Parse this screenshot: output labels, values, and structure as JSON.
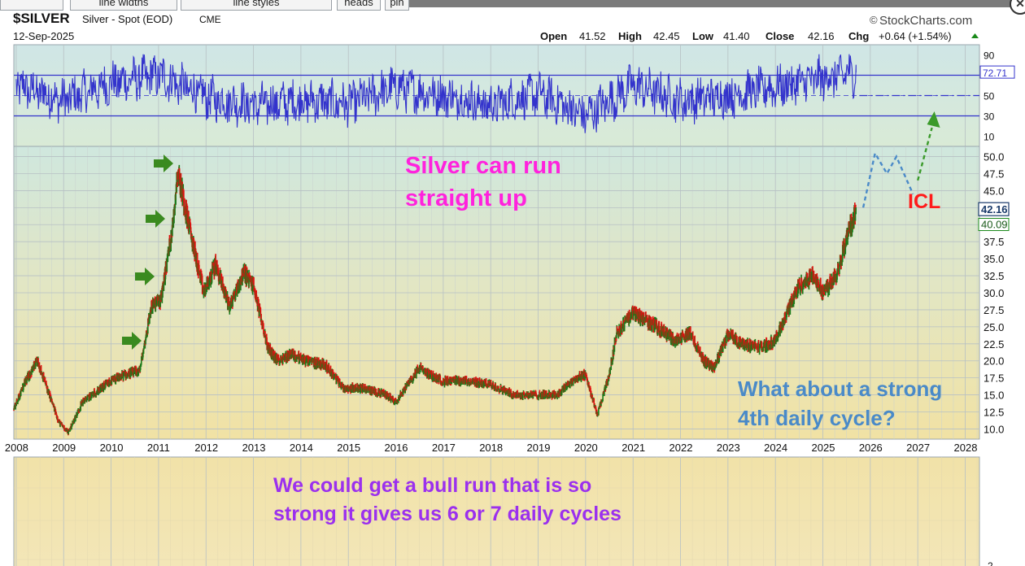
{
  "toolbar": {
    "buttons": [
      "line widths",
      "line styles",
      "heads",
      "pin"
    ]
  },
  "header": {
    "symbol": "$SILVER",
    "name": "Silver - Spot (EOD)",
    "exchange": "CME",
    "date": "12-Sep-2025",
    "brand": "StockCharts.com",
    "open_label": "Open",
    "open": "41.52",
    "high_label": "High",
    "high": "42.45",
    "low_label": "Low",
    "low": "41.40",
    "close_label": "Close",
    "close": "42.16",
    "chg_label": "Chg",
    "chg": "+0.64 (+1.54%)"
  },
  "colors": {
    "rsi_line": "#3333cc",
    "up_bar": "#1a7a1a",
    "down_bar": "#e01010",
    "arrow_green": "#3a8a1f",
    "annotation_magenta": "#ff22dd",
    "annotation_blue": "#4a8ac8",
    "annotation_purple": "#9b30ee",
    "icl_red": "#ff1a1a",
    "projection_blue": "#4a8ac8",
    "projection_green": "#3a9a2a"
  },
  "annotations": {
    "silver_run_line1": "Silver can run",
    "silver_run_line2": "straight up",
    "strong_4th_line1": "What about a strong",
    "strong_4th_line2": "4th daily cycle?",
    "bull_run_line1": "We could get a bull run that is so",
    "bull_run_line2": "strong it gives us 6 or 7 daily cycles",
    "icl_label": "ICL"
  },
  "chart_data": [
    {
      "type": "line",
      "panel": "indicator",
      "title": "",
      "y_ticks": [
        10,
        30,
        50,
        90
      ],
      "ylim": [
        0,
        100
      ],
      "reference_lines": [
        30,
        50,
        70
      ],
      "last_value": "72.71",
      "series": [
        {
          "values_description": "",
          "x": [
            2008,
            2009,
            2010,
            2011,
            2012,
            2013,
            2014,
            2015,
            2016,
            2017,
            2018,
            2019,
            2020,
            2021,
            2022,
            2023,
            2024,
            2025.7
          ],
          "values": [
            60,
            45,
            62,
            70,
            48,
            40,
            45,
            42,
            58,
            50,
            40,
            52,
            30,
            60,
            45,
            50,
            58,
            72.71
          ]
        }
      ]
    },
    {
      "type": "line",
      "panel": "price",
      "xlabel": "",
      "ylabel": "",
      "x_ticks": [
        "2008",
        "2009",
        "2010",
        "2011",
        "2012",
        "2013",
        "2014",
        "2015",
        "2016",
        "2017",
        "2018",
        "2019",
        "2020",
        "2021",
        "2022",
        "2023",
        "2024",
        "2025",
        "2026",
        "2027",
        "2028"
      ],
      "y_ticks": [
        "10.0",
        "12.5",
        "15.0",
        "17.5",
        "20.0",
        "22.5",
        "25.0",
        "27.5",
        "30.0",
        "32.5",
        "35.0",
        "37.5",
        "40.0",
        "42.5",
        "45.0",
        "47.5",
        "50.0"
      ],
      "ylim": [
        8.5,
        51.5
      ],
      "xlim": [
        2007.95,
        2028.3
      ],
      "price_label_last": "42.16",
      "price_label_ma": "40.09",
      "series": [
        {
          "name": "",
          "x": [
            2007.95,
            2008.2,
            2008.45,
            2008.6,
            2008.9,
            2009.1,
            2009.4,
            2009.7,
            2010.0,
            2010.3,
            2010.6,
            2010.85,
            2011.05,
            2011.3,
            2011.4,
            2011.7,
            2011.95,
            2012.2,
            2012.5,
            2012.8,
            2013.0,
            2013.3,
            2013.5,
            2013.8,
            2014.1,
            2014.5,
            2014.9,
            2015.3,
            2015.8,
            2016.0,
            2016.5,
            2016.7,
            2017.0,
            2017.5,
            2018.0,
            2018.5,
            2019.0,
            2019.4,
            2019.7,
            2020.0,
            2020.25,
            2020.5,
            2020.65,
            2021.0,
            2021.5,
            2021.9,
            2022.2,
            2022.5,
            2022.7,
            2023.0,
            2023.3,
            2023.7,
            2024.0,
            2024.3,
            2024.5,
            2024.8,
            2025.0,
            2025.3,
            2025.5,
            2025.7
          ],
          "values": [
            13,
            17,
            20,
            17,
            11,
            9.5,
            14,
            15.5,
            17,
            18,
            18.5,
            28,
            29,
            40,
            48,
            38,
            30,
            34,
            28,
            33,
            31,
            22,
            20,
            21,
            20,
            19.5,
            16,
            16,
            15,
            14,
            19,
            18,
            17,
            17,
            16.5,
            15,
            15,
            15,
            17,
            18,
            12,
            18,
            24,
            27,
            25,
            23,
            24,
            20,
            19,
            24,
            22.5,
            22,
            23,
            28,
            31,
            32.5,
            30,
            33,
            38,
            42.16
          ]
        }
      ],
      "projection_blue": {
        "x": [
          2025.85,
          2026.1,
          2026.35,
          2026.55,
          2026.9
        ],
        "y": [
          42.5,
          50.5,
          47.5,
          50.0,
          44.5
        ]
      },
      "projection_green": {
        "x": [
          2027.0,
          2027.35
        ],
        "y": [
          46.5,
          53.5
        ]
      }
    },
    {
      "type": "line",
      "panel": "lower",
      "y_ticks": [
        "2"
      ],
      "series": []
    }
  ]
}
